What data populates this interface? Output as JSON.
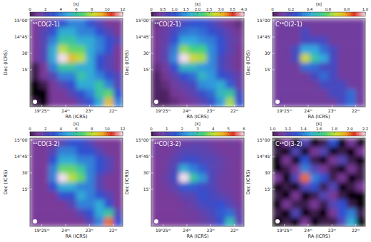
{
  "chart_data": [
    {
      "type": "heatmap",
      "title": "¹²CO(2-1)",
      "colorbar_label": "[K]",
      "x_label": "RA (ICRS)",
      "y_label": "Dec (ICRS)",
      "xlim": [
        25.5,
        21.6
      ],
      "xticks": [
        {
          "value": 25,
          "label": "19ʰ25ᵐ"
        },
        {
          "value": 24,
          "label": "24ᵐ"
        },
        {
          "value": 23,
          "label": "23ᵐ"
        },
        {
          "value": 22,
          "label": "22ᵐ"
        }
      ],
      "ylim": [
        -19,
        62
      ],
      "yticks": [
        {
          "value": 60,
          "label": "15°00'"
        },
        {
          "value": 45,
          "label": "14°45'"
        },
        {
          "value": 30,
          "label": "30'"
        },
        {
          "value": 15,
          "label": "15'"
        }
      ],
      "colorbar_range": [
        0,
        12
      ],
      "colorbar_ticks": [
        0,
        2,
        4,
        6,
        8,
        10,
        12
      ],
      "cells": [
        [
          1,
          1,
          2,
          3,
          4,
          4,
          3,
          2,
          1,
          1
        ],
        [
          1,
          2,
          3,
          5,
          5,
          4,
          4,
          3,
          2,
          1
        ],
        [
          1,
          2,
          4,
          6,
          6,
          5,
          5,
          4,
          3,
          2
        ],
        [
          1,
          2,
          5,
          8,
          7,
          7,
          5,
          4,
          3,
          1
        ],
        [
          1,
          2,
          5,
          12,
          9,
          8,
          5,
          3,
          2,
          1
        ],
        [
          0,
          1,
          4,
          6,
          6,
          5,
          5,
          3,
          2,
          1
        ],
        [
          0,
          1,
          2,
          4,
          4,
          6,
          5,
          4,
          3,
          2
        ],
        [
          -1,
          0,
          1,
          2,
          3,
          5,
          5,
          6,
          4,
          2
        ],
        [
          -1,
          -1,
          1,
          1,
          2,
          3,
          4,
          6,
          7,
          3
        ],
        [
          0,
          -1,
          1,
          1,
          1,
          2,
          3,
          5,
          9,
          4
        ]
      ]
    },
    {
      "type": "heatmap",
      "title": "¹³CO(2-1)",
      "colorbar_label": "[K]",
      "x_label": "RA (ICRS)",
      "y_label": "Dec (ICRS)",
      "xlim": [
        25.5,
        21.6
      ],
      "xticks": [
        {
          "value": 25,
          "label": "19ʰ25ᵐ"
        },
        {
          "value": 24,
          "label": "24ᵐ"
        },
        {
          "value": 23,
          "label": "23ᵐ"
        },
        {
          "value": 22,
          "label": "22ᵐ"
        }
      ],
      "ylim": [
        -19,
        62
      ],
      "yticks": [
        {
          "value": 60,
          "label": "15°00'"
        },
        {
          "value": 45,
          "label": "14°45'"
        },
        {
          "value": 30,
          "label": "30'"
        },
        {
          "value": 15,
          "label": "15'"
        }
      ],
      "colorbar_range": [
        0,
        4
      ],
      "colorbar_ticks": [
        0,
        0.5,
        {
          "value": 1,
          "label": "1.0"
        },
        1.5,
        {
          "value": 2,
          "label": "2.0"
        },
        2.5,
        {
          "value": 3,
          "label": "3.0"
        },
        3.5,
        {
          "value": 4,
          "label": "4.0"
        }
      ],
      "cells": [
        [
          0.2,
          0.3,
          0.5,
          0.8,
          1.0,
          1.0,
          0.8,
          0.5,
          0.3,
          0.2
        ],
        [
          0.3,
          0.5,
          0.8,
          1.2,
          1.3,
          1.2,
          1.0,
          0.8,
          0.5,
          0.3
        ],
        [
          0.3,
          0.5,
          1.0,
          1.6,
          1.6,
          1.4,
          1.3,
          1.0,
          0.6,
          0.4
        ],
        [
          0.3,
          0.6,
          1.3,
          2.5,
          2.2,
          2.2,
          1.4,
          1.0,
          0.6,
          0.3
        ],
        [
          0.3,
          0.6,
          1.4,
          4.0,
          2.8,
          2.6,
          1.4,
          0.8,
          0.5,
          0.3
        ],
        [
          0.2,
          0.4,
          1.0,
          1.8,
          1.8,
          1.5,
          1.4,
          0.8,
          0.5,
          0.3
        ],
        [
          0.1,
          0.3,
          0.6,
          1.0,
          1.2,
          1.8,
          1.5,
          1.0,
          0.8,
          0.5
        ],
        [
          0.1,
          0.2,
          0.4,
          0.6,
          0.8,
          1.4,
          1.5,
          1.7,
          1.1,
          0.5
        ],
        [
          0.1,
          0.1,
          0.3,
          0.4,
          0.6,
          0.9,
          1.2,
          1.8,
          2.0,
          0.8
        ],
        [
          0.1,
          0.1,
          0.2,
          0.3,
          0.4,
          0.6,
          0.9,
          1.5,
          2.6,
          1.0
        ]
      ]
    },
    {
      "type": "heatmap",
      "title": "C¹⁸O(2-1)",
      "colorbar_label": "[K]",
      "x_label": "RA (ICRS)",
      "y_label": "Dec (ICRS)",
      "xlim": [
        25.5,
        21.6
      ],
      "xticks": [
        {
          "value": 25,
          "label": "19ʰ25ᵐ"
        },
        {
          "value": 24,
          "label": "24ᵐ"
        },
        {
          "value": 23,
          "label": "23ᵐ"
        },
        {
          "value": 22,
          "label": "22ᵐ"
        }
      ],
      "ylim": [
        -19,
        62
      ],
      "yticks": [
        {
          "value": 60,
          "label": "15°00'"
        },
        {
          "value": 45,
          "label": "14°45'"
        },
        {
          "value": 30,
          "label": "30'"
        },
        {
          "value": 15,
          "label": "15'"
        }
      ],
      "colorbar_range": [
        0,
        1
      ],
      "colorbar_ticks": [
        0,
        0.2,
        0.4,
        0.6,
        0.8,
        {
          "value": 1,
          "label": "1.0"
        }
      ],
      "cells": [
        [
          0.1,
          0.1,
          0.1,
          0.1,
          0.1,
          0.1,
          0.1,
          0.1,
          0.1,
          0.1
        ],
        [
          0.1,
          0.1,
          0.1,
          0.2,
          0.1,
          0.1,
          0.1,
          0.1,
          0.1,
          0.1
        ],
        [
          0.1,
          0.1,
          0.1,
          0.2,
          0.2,
          0.2,
          0.1,
          0.1,
          0.1,
          0.1
        ],
        [
          0.1,
          0.1,
          0.2,
          0.4,
          0.4,
          0.3,
          0.2,
          0.1,
          0.1,
          0.1
        ],
        [
          0.1,
          0.1,
          0.2,
          0.7,
          0.5,
          0.4,
          0.2,
          0.1,
          0.1,
          0.1
        ],
        [
          0.1,
          0.1,
          0.1,
          0.3,
          0.3,
          0.2,
          0.2,
          0.1,
          0.1,
          0.1
        ],
        [
          0.1,
          0.1,
          0.1,
          0.1,
          0.2,
          0.3,
          0.2,
          0.1,
          0.1,
          0.1
        ],
        [
          0.1,
          0.1,
          0.1,
          0.1,
          0.1,
          0.2,
          0.2,
          0.2,
          0.1,
          0.1
        ],
        [
          0.1,
          0.1,
          0.1,
          0.1,
          0.1,
          0.1,
          0.2,
          0.2,
          0.3,
          0.1
        ],
        [
          0.1,
          0.1,
          0.1,
          0.1,
          0.1,
          0.1,
          0.1,
          0.2,
          0.3,
          0.1
        ]
      ]
    },
    {
      "type": "heatmap",
      "title": "¹²CO(3-2)",
      "colorbar_label": "[K]",
      "x_label": "RA (ICRS)",
      "y_label": "Dec (ICRS)",
      "xlim": [
        25.5,
        21.6
      ],
      "xticks": [
        {
          "value": 25,
          "label": "19ʰ25ᵐ"
        },
        {
          "value": 24,
          "label": "24ᵐ"
        },
        {
          "value": 23,
          "label": "23ᵐ"
        },
        {
          "value": 22,
          "label": "22ᵐ"
        }
      ],
      "ylim": [
        -19,
        62
      ],
      "yticks": [
        {
          "value": 60,
          "label": "15°00'"
        },
        {
          "value": 45,
          "label": "14°45'"
        },
        {
          "value": 30,
          "label": "30'"
        },
        {
          "value": 15,
          "label": "15'"
        }
      ],
      "colorbar_range": [
        0,
        12
      ],
      "colorbar_ticks": [
        0,
        2,
        4,
        6,
        8,
        10,
        12
      ],
      "cells": [
        [
          1,
          1,
          1,
          2,
          3,
          3,
          2,
          1,
          1,
          1
        ],
        [
          1,
          1,
          2,
          4,
          4,
          3,
          3,
          2,
          1,
          1
        ],
        [
          1,
          1,
          3,
          5,
          5,
          4,
          4,
          3,
          2,
          1
        ],
        [
          1,
          1,
          4,
          7,
          7,
          6,
          4,
          3,
          2,
          1
        ],
        [
          1,
          1,
          4,
          12,
          8,
          7,
          4,
          2,
          1,
          1
        ],
        [
          1,
          1,
          3,
          5,
          5,
          4,
          4,
          2,
          1,
          1
        ],
        [
          1,
          1,
          1,
          3,
          3,
          5,
          4,
          3,
          2,
          1
        ],
        [
          1,
          1,
          1,
          1,
          2,
          4,
          4,
          5,
          3,
          1
        ],
        [
          1,
          1,
          1,
          1,
          1,
          2,
          3,
          5,
          6,
          2
        ],
        [
          1,
          1,
          1,
          1,
          1,
          1,
          2,
          4,
          10,
          3
        ]
      ]
    },
    {
      "type": "heatmap",
      "title": "¹³CO(3-2)",
      "colorbar_label": "[K]",
      "x_label": "RA (ICRS)",
      "y_label": "Dec (ICRS)",
      "xlim": [
        25.5,
        21.6
      ],
      "xticks": [
        {
          "value": 25,
          "label": "19ʰ25ᵐ"
        },
        {
          "value": 24,
          "label": "24ᵐ"
        },
        {
          "value": 23,
          "label": "23ᵐ"
        },
        {
          "value": 22,
          "label": "22ᵐ"
        }
      ],
      "ylim": [
        -19,
        62
      ],
      "yticks": [
        {
          "value": 60,
          "label": "15°00'"
        },
        {
          "value": 45,
          "label": "14°45'"
        },
        {
          "value": 30,
          "label": "30'"
        },
        {
          "value": 15,
          "label": "15'"
        }
      ],
      "colorbar_range": [
        0,
        6
      ],
      "colorbar_ticks": [
        0,
        1,
        2,
        3,
        4,
        5,
        6
      ],
      "cells": [
        [
          0.5,
          0.6,
          0.5,
          0.7,
          0.8,
          0.8,
          0.6,
          0.5,
          0.6,
          0.5
        ],
        [
          0.6,
          0.5,
          0.7,
          1.0,
          1.0,
          0.9,
          0.8,
          0.6,
          0.5,
          0.6
        ],
        [
          0.5,
          0.6,
          0.9,
          1.3,
          1.4,
          1.1,
          1.0,
          0.8,
          0.6,
          0.5
        ],
        [
          0.5,
          0.6,
          1.1,
          2.5,
          2.0,
          1.6,
          1.0,
          0.8,
          0.6,
          0.5
        ],
        [
          0.5,
          0.7,
          1.2,
          6.0,
          3.0,
          2.2,
          1.1,
          0.7,
          0.6,
          0.5
        ],
        [
          0.5,
          0.6,
          0.9,
          1.6,
          1.6,
          1.3,
          1.1,
          0.7,
          0.6,
          0.5
        ],
        [
          0.5,
          0.5,
          0.6,
          0.9,
          1.0,
          1.5,
          1.2,
          0.9,
          0.7,
          0.5
        ],
        [
          0.5,
          0.5,
          0.5,
          0.6,
          0.8,
          1.2,
          1.3,
          1.5,
          1.0,
          0.6
        ],
        [
          0.5,
          0.5,
          0.5,
          0.6,
          0.6,
          0.8,
          1.1,
          1.6,
          1.8,
          0.8
        ],
        [
          0.5,
          0.5,
          0.5,
          0.5,
          0.6,
          0.7,
          0.9,
          1.4,
          2.8,
          0.9
        ]
      ]
    },
    {
      "type": "heatmap",
      "title": "C¹⁸O(3-2)",
      "colorbar_label": "[K]",
      "x_label": "RA (ICRS)",
      "y_label": "Dec (ICRS)",
      "xlim": [
        25.5,
        21.6
      ],
      "xticks": [
        {
          "value": 25,
          "label": "19ʰ25ᵐ"
        },
        {
          "value": 24,
          "label": "24ᵐ"
        },
        {
          "value": 23,
          "label": "23ᵐ"
        },
        {
          "value": 22,
          "label": "22ᵐ"
        }
      ],
      "ylim": [
        -19,
        62
      ],
      "yticks": [
        {
          "value": 60,
          "label": "15°00'"
        },
        {
          "value": 45,
          "label": "14°45'"
        },
        {
          "value": 30,
          "label": "30'"
        },
        {
          "value": 15,
          "label": "15'"
        }
      ],
      "colorbar_range": [
        1,
        2.2
      ],
      "colorbar_ticks": [
        {
          "value": 1,
          "label": "1.0"
        },
        1.2,
        1.4,
        1.6,
        1.8,
        {
          "value": 2,
          "label": "2.0"
        },
        2.2
      ],
      "cells": [
        [
          0.9,
          1.1,
          0.8,
          1.2,
          0.9,
          1.0,
          1.3,
          0.9,
          1.1,
          0.9
        ],
        [
          1.0,
          0.8,
          1.2,
          0.9,
          1.1,
          1.2,
          0.9,
          1.0,
          0.8,
          1.1
        ],
        [
          0.9,
          1.1,
          0.9,
          1.3,
          1.0,
          0.9,
          1.1,
          1.2,
          1.0,
          0.9
        ],
        [
          0.8,
          1.0,
          1.1,
          1.4,
          1.2,
          1.1,
          1.0,
          0.9,
          1.1,
          1.0
        ],
        [
          1.1,
          0.9,
          1.2,
          2.0,
          1.4,
          1.3,
          1.0,
          1.1,
          0.9,
          1.0
        ],
        [
          0.9,
          1.0,
          0.9,
          1.2,
          1.3,
          1.0,
          1.2,
          0.9,
          1.0,
          1.1
        ],
        [
          1.0,
          0.8,
          1.1,
          0.9,
          1.0,
          1.2,
          1.1,
          1.0,
          0.9,
          0.8
        ],
        [
          0.9,
          1.1,
          1.0,
          1.0,
          1.1,
          1.0,
          1.2,
          1.3,
          1.0,
          0.9
        ],
        [
          1.0,
          0.9,
          1.2,
          0.9,
          1.0,
          0.9,
          1.1,
          1.3,
          1.4,
          1.0
        ],
        [
          0.8,
          1.0,
          0.9,
          1.1,
          0.9,
          1.0,
          1.0,
          1.2,
          1.5,
          0.9
        ]
      ]
    }
  ]
}
